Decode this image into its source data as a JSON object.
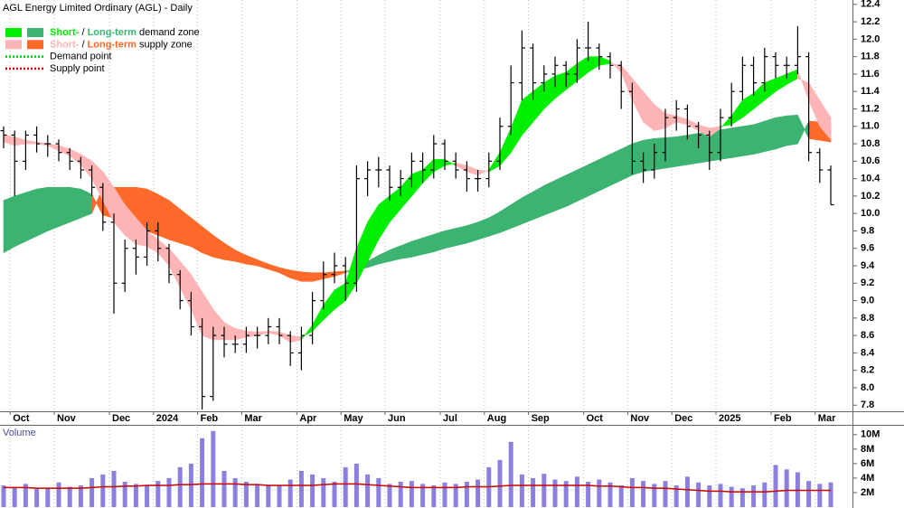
{
  "chart_data": [
    {
      "type": "ohlc",
      "title": "AGL Energy Limited Ordinary (AGL) - Daily",
      "categories": [
        null,
        "Oct",
        null,
        null,
        null,
        "Nov",
        null,
        null,
        null,
        null,
        "Dec",
        null,
        null,
        null,
        "2024",
        null,
        null,
        null,
        "Feb",
        null,
        null,
        null,
        "Mar",
        null,
        null,
        null,
        null,
        "Apr",
        null,
        null,
        null,
        "May",
        null,
        null,
        null,
        "Jun",
        null,
        null,
        null,
        null,
        "Jul",
        null,
        null,
        null,
        "Aug",
        null,
        null,
        null,
        "Sep",
        null,
        null,
        null,
        null,
        "Oct",
        null,
        null,
        null,
        "Nov",
        null,
        null,
        null,
        "Dec",
        null,
        null,
        null,
        "2025",
        null,
        null,
        null,
        null,
        "Feb",
        null,
        null,
        null,
        "Mar",
        null
      ],
      "open": [
        10.95,
        10.9,
        10.6,
        10.9,
        10.8,
        10.8,
        10.7,
        10.6,
        10.5,
        10.3,
        9.9,
        9.2,
        9.6,
        9.5,
        9.8,
        9.6,
        9.3,
        9.0,
        8.7,
        7.9,
        8.6,
        8.5,
        8.5,
        8.6,
        8.6,
        8.7,
        8.6,
        8.4,
        8.6,
        9.0,
        9.3,
        9.4,
        9.2,
        10.4,
        10.5,
        10.5,
        10.3,
        10.4,
        10.6,
        10.5,
        10.8,
        10.6,
        10.5,
        10.4,
        10.4,
        10.6,
        11.0,
        11.5,
        11.9,
        11.5,
        11.6,
        11.7,
        11.6,
        11.9,
        11.9,
        11.8,
        11.7,
        11.4,
        10.6,
        10.5,
        10.7,
        11.1,
        11.2,
        11.0,
        10.9,
        10.7,
        11.1,
        11.4,
        11.7,
        11.5,
        11.8,
        11.7,
        11.7,
        11.8,
        10.7,
        10.5
      ],
      "high": [
        11.0,
        10.95,
        10.95,
        11.0,
        10.9,
        10.85,
        10.75,
        10.65,
        10.55,
        10.35,
        10.0,
        9.7,
        9.7,
        9.9,
        9.9,
        9.65,
        9.35,
        9.1,
        8.8,
        8.7,
        8.7,
        8.6,
        8.7,
        8.7,
        8.8,
        8.8,
        8.65,
        8.7,
        9.1,
        9.45,
        9.55,
        9.5,
        10.55,
        10.6,
        10.65,
        10.55,
        10.5,
        10.7,
        10.7,
        10.9,
        10.85,
        10.7,
        10.6,
        10.5,
        10.7,
        11.1,
        11.7,
        12.1,
        11.95,
        11.7,
        11.8,
        11.75,
        12.0,
        12.2,
        11.95,
        11.85,
        11.75,
        11.5,
        10.7,
        10.8,
        11.2,
        11.3,
        11.25,
        11.05,
        10.95,
        11.2,
        11.5,
        11.8,
        11.8,
        11.9,
        11.85,
        11.8,
        12.15,
        11.85,
        10.75,
        10.55
      ],
      "low": [
        10.75,
        10.2,
        10.5,
        10.7,
        10.65,
        10.6,
        10.5,
        10.4,
        10.2,
        9.8,
        8.85,
        9.1,
        9.3,
        9.4,
        9.45,
        9.2,
        8.9,
        8.6,
        7.75,
        7.85,
        8.35,
        8.4,
        8.4,
        8.45,
        8.5,
        8.5,
        8.25,
        8.2,
        8.5,
        8.9,
        9.2,
        9.0,
        9.1,
        10.2,
        10.3,
        10.15,
        10.2,
        10.3,
        10.35,
        10.4,
        10.5,
        10.4,
        10.25,
        10.25,
        10.3,
        10.5,
        10.9,
        11.3,
        11.3,
        11.4,
        11.45,
        11.45,
        11.5,
        11.75,
        11.65,
        11.55,
        11.2,
        10.45,
        10.35,
        10.4,
        10.6,
        10.95,
        10.85,
        10.75,
        10.5,
        10.6,
        11.0,
        11.3,
        11.35,
        11.4,
        11.55,
        11.55,
        11.6,
        10.6,
        10.35,
        10.1
      ],
      "close": [
        10.9,
        10.6,
        10.9,
        10.8,
        10.8,
        10.7,
        10.6,
        10.5,
        10.3,
        9.9,
        9.2,
        9.6,
        9.5,
        9.8,
        9.6,
        9.3,
        9.0,
        8.7,
        7.9,
        8.6,
        8.5,
        8.5,
        8.6,
        8.6,
        8.7,
        8.6,
        8.4,
        8.6,
        9.0,
        9.3,
        9.4,
        9.2,
        10.4,
        10.5,
        10.5,
        10.3,
        10.4,
        10.6,
        10.5,
        10.8,
        10.6,
        10.5,
        10.4,
        10.4,
        10.6,
        11.0,
        11.5,
        11.9,
        11.5,
        11.6,
        11.7,
        11.6,
        11.9,
        11.9,
        11.8,
        11.7,
        11.4,
        10.6,
        10.5,
        10.7,
        11.1,
        11.2,
        11.0,
        10.9,
        10.7,
        11.1,
        11.4,
        11.7,
        11.5,
        11.8,
        11.7,
        11.7,
        11.8,
        10.7,
        10.5,
        10.1
      ],
      "color": "#000000",
      "short_term_zone": {
        "fast": [
          10.82,
          10.78,
          10.8,
          10.8,
          10.78,
          10.72,
          10.66,
          10.56,
          10.4,
          10.15,
          9.9,
          9.75,
          9.65,
          9.62,
          9.55,
          9.4,
          9.15,
          8.9,
          8.6,
          8.55,
          8.55,
          8.55,
          8.58,
          8.6,
          8.63,
          8.6,
          8.52,
          8.55,
          8.72,
          8.95,
          9.12,
          9.2,
          9.6,
          9.9,
          10.1,
          10.2,
          10.3,
          10.45,
          10.5,
          10.62,
          10.62,
          10.55,
          10.48,
          10.44,
          10.5,
          10.7,
          10.98,
          11.3,
          11.4,
          11.5,
          11.58,
          11.62,
          11.72,
          11.8,
          11.8,
          11.75,
          11.62,
          11.3,
          11.05,
          10.95,
          10.98,
          11.05,
          11.02,
          10.95,
          10.88,
          10.98,
          11.12,
          11.3,
          11.38,
          11.5,
          11.55,
          11.6,
          11.65,
          11.3,
          11.0,
          10.85
        ],
        "slow": [
          10.9,
          10.88,
          10.84,
          10.82,
          10.8,
          10.78,
          10.74,
          10.68,
          10.6,
          10.48,
          10.3,
          10.1,
          9.95,
          9.8,
          9.7,
          9.6,
          9.45,
          9.3,
          9.1,
          8.9,
          8.75,
          8.68,
          8.65,
          8.64,
          8.65,
          8.64,
          8.6,
          8.58,
          8.65,
          8.78,
          8.9,
          9.0,
          9.2,
          9.45,
          9.7,
          9.9,
          10.05,
          10.2,
          10.35,
          10.48,
          10.55,
          10.58,
          10.55,
          10.5,
          10.48,
          10.55,
          10.7,
          10.9,
          11.05,
          11.2,
          11.32,
          11.42,
          11.52,
          11.62,
          11.7,
          11.72,
          11.7,
          11.55,
          11.4,
          11.25,
          11.15,
          11.12,
          11.08,
          11.02,
          10.98,
          11.0,
          11.02,
          11.1,
          11.2,
          11.3,
          11.4,
          11.48,
          11.55,
          11.5,
          11.3,
          11.1
        ]
      },
      "long_term_zone": {
        "fast": [
          10.15,
          10.2,
          10.24,
          10.28,
          10.3,
          10.3,
          10.3,
          10.28,
          10.22,
          9.98,
          9.95,
          9.9,
          9.85,
          9.8,
          9.75,
          9.7,
          9.66,
          9.62,
          9.55,
          9.5,
          9.47,
          9.45,
          9.42,
          9.4,
          9.36,
          9.32,
          9.26,
          9.22,
          9.22,
          9.25,
          9.28,
          9.32,
          9.38,
          9.45,
          9.52,
          9.58,
          9.63,
          9.68,
          9.72,
          9.76,
          9.8,
          9.83,
          9.86,
          9.9,
          9.95,
          10.02,
          10.1,
          10.18,
          10.25,
          10.32,
          10.38,
          10.44,
          10.5,
          10.56,
          10.62,
          10.68,
          10.74,
          10.8,
          10.84,
          10.86,
          10.87,
          10.88,
          10.9,
          10.92,
          10.94,
          10.96,
          10.98,
          11.0,
          11.02,
          11.06,
          11.1,
          11.12,
          11.13,
          10.86,
          10.84,
          10.82
        ],
        "slow": [
          9.55,
          9.62,
          9.68,
          9.74,
          9.8,
          9.85,
          9.9,
          9.95,
          10.0,
          10.3,
          10.3,
          10.3,
          10.3,
          10.28,
          10.22,
          10.15,
          10.05,
          9.95,
          9.85,
          9.75,
          9.66,
          9.58,
          9.52,
          9.47,
          9.42,
          9.38,
          9.35,
          9.33,
          9.32,
          9.32,
          9.33,
          9.34,
          9.35,
          9.38,
          9.42,
          9.45,
          9.48,
          9.5,
          9.53,
          9.56,
          9.6,
          9.63,
          9.66,
          9.7,
          9.74,
          9.78,
          9.83,
          9.88,
          9.93,
          9.98,
          10.03,
          10.08,
          10.14,
          10.2,
          10.26,
          10.32,
          10.38,
          10.44,
          10.48,
          10.5,
          10.52,
          10.54,
          10.56,
          10.58,
          10.6,
          10.62,
          10.64,
          10.66,
          10.68,
          10.71,
          10.74,
          10.78,
          10.8,
          11.06,
          11.05,
          11.04
        ]
      },
      "legend": [
        {
          "parts": [
            "Short-",
            " / ",
            "Long-term",
            " demand zone"
          ],
          "colors": [
            "#00ee00",
            "#3cb371"
          ]
        },
        {
          "parts": [
            "Short-",
            " / ",
            "Long-term",
            " supply zone"
          ],
          "colors": [
            "#ffb5b5",
            "#ff6a2a"
          ]
        },
        {
          "label": "Demand point",
          "color": "#00cc00"
        },
        {
          "label": "Supply point",
          "color": "#dd0000"
        }
      ],
      "ylim": [
        7.73,
        12.45
      ],
      "yticks": [
        7.8,
        {
          "value": 8,
          "label": "8.0"
        },
        8.2,
        8.4,
        8.6,
        8.8,
        {
          "value": 9,
          "label": "9.0"
        },
        9.2,
        9.4,
        9.6,
        9.8,
        {
          "value": 10,
          "label": "10.0"
        },
        10.2,
        10.4,
        10.6,
        10.8,
        {
          "value": 11,
          "label": "11.0"
        },
        11.2,
        11.4,
        11.6,
        11.8,
        {
          "value": 12,
          "label": "12.0"
        },
        12.2,
        12.4
      ],
      "grid": true
    },
    {
      "type": "volume",
      "title": "Volume",
      "values": [
        3,
        2.8,
        3.2,
        2.5,
        2.6,
        3.4,
        2.8,
        3,
        4,
        4.5,
        5,
        3.5,
        3.2,
        3,
        3.6,
        4,
        5.5,
        6,
        9.5,
        10.5,
        5,
        4,
        3.5,
        3.2,
        3,
        3,
        3.8,
        5,
        4.5,
        4,
        3.5,
        5.5,
        6,
        4.5,
        4,
        3.2,
        3.5,
        3.6,
        3.2,
        3,
        3.4,
        3.2,
        3.5,
        3.8,
        5.5,
        6.5,
        9,
        4.5,
        4,
        4.6,
        3.8,
        3.6,
        4.2,
        3.5,
        3.8,
        3.4,
        3,
        4,
        3.6,
        3.2,
        3.6,
        3,
        4.2,
        3.4,
        3,
        3.2,
        2.8,
        2.6,
        3,
        3.4,
        5.8,
        5.2,
        4.8,
        3.6,
        3.2,
        3.4
      ],
      "color": "#8b80e0",
      "average": {
        "values": [
          2.7,
          2.7,
          2.7,
          2.6,
          2.6,
          2.6,
          2.6,
          2.6,
          2.7,
          2.8,
          2.8,
          2.9,
          2.9,
          3.0,
          3.0,
          3.0,
          3.1,
          3.1,
          3.2,
          3.2,
          3.2,
          3.2,
          3.1,
          3.1,
          3.0,
          3.0,
          3.0,
          3.0,
          3.0,
          3.1,
          3.2,
          3.2,
          3.2,
          3.1,
          3.0,
          2.9,
          2.8,
          2.7,
          2.7,
          2.7,
          2.7,
          2.7,
          2.8,
          2.8,
          2.8,
          2.9,
          3.0,
          3.0,
          3.0,
          3.0,
          3.0,
          3.0,
          3.0,
          3.0,
          2.9,
          2.9,
          2.8,
          2.7,
          2.7,
          2.6,
          2.6,
          2.5,
          2.4,
          2.3,
          2.2,
          2.2,
          2.1,
          2.1,
          2.1,
          2.1,
          2.2,
          2.3,
          2.3,
          2.3,
          2.3,
          2.3
        ],
        "color": "#cc0000"
      },
      "ylim": [
        0,
        11.1
      ],
      "yticks": [
        {
          "value": 2,
          "label": "2M"
        },
        {
          "value": 4,
          "label": "4M"
        },
        {
          "value": 6,
          "label": "6M"
        },
        {
          "value": 8,
          "label": "8M"
        },
        {
          "value": 10,
          "label": "10M"
        }
      ]
    }
  ]
}
